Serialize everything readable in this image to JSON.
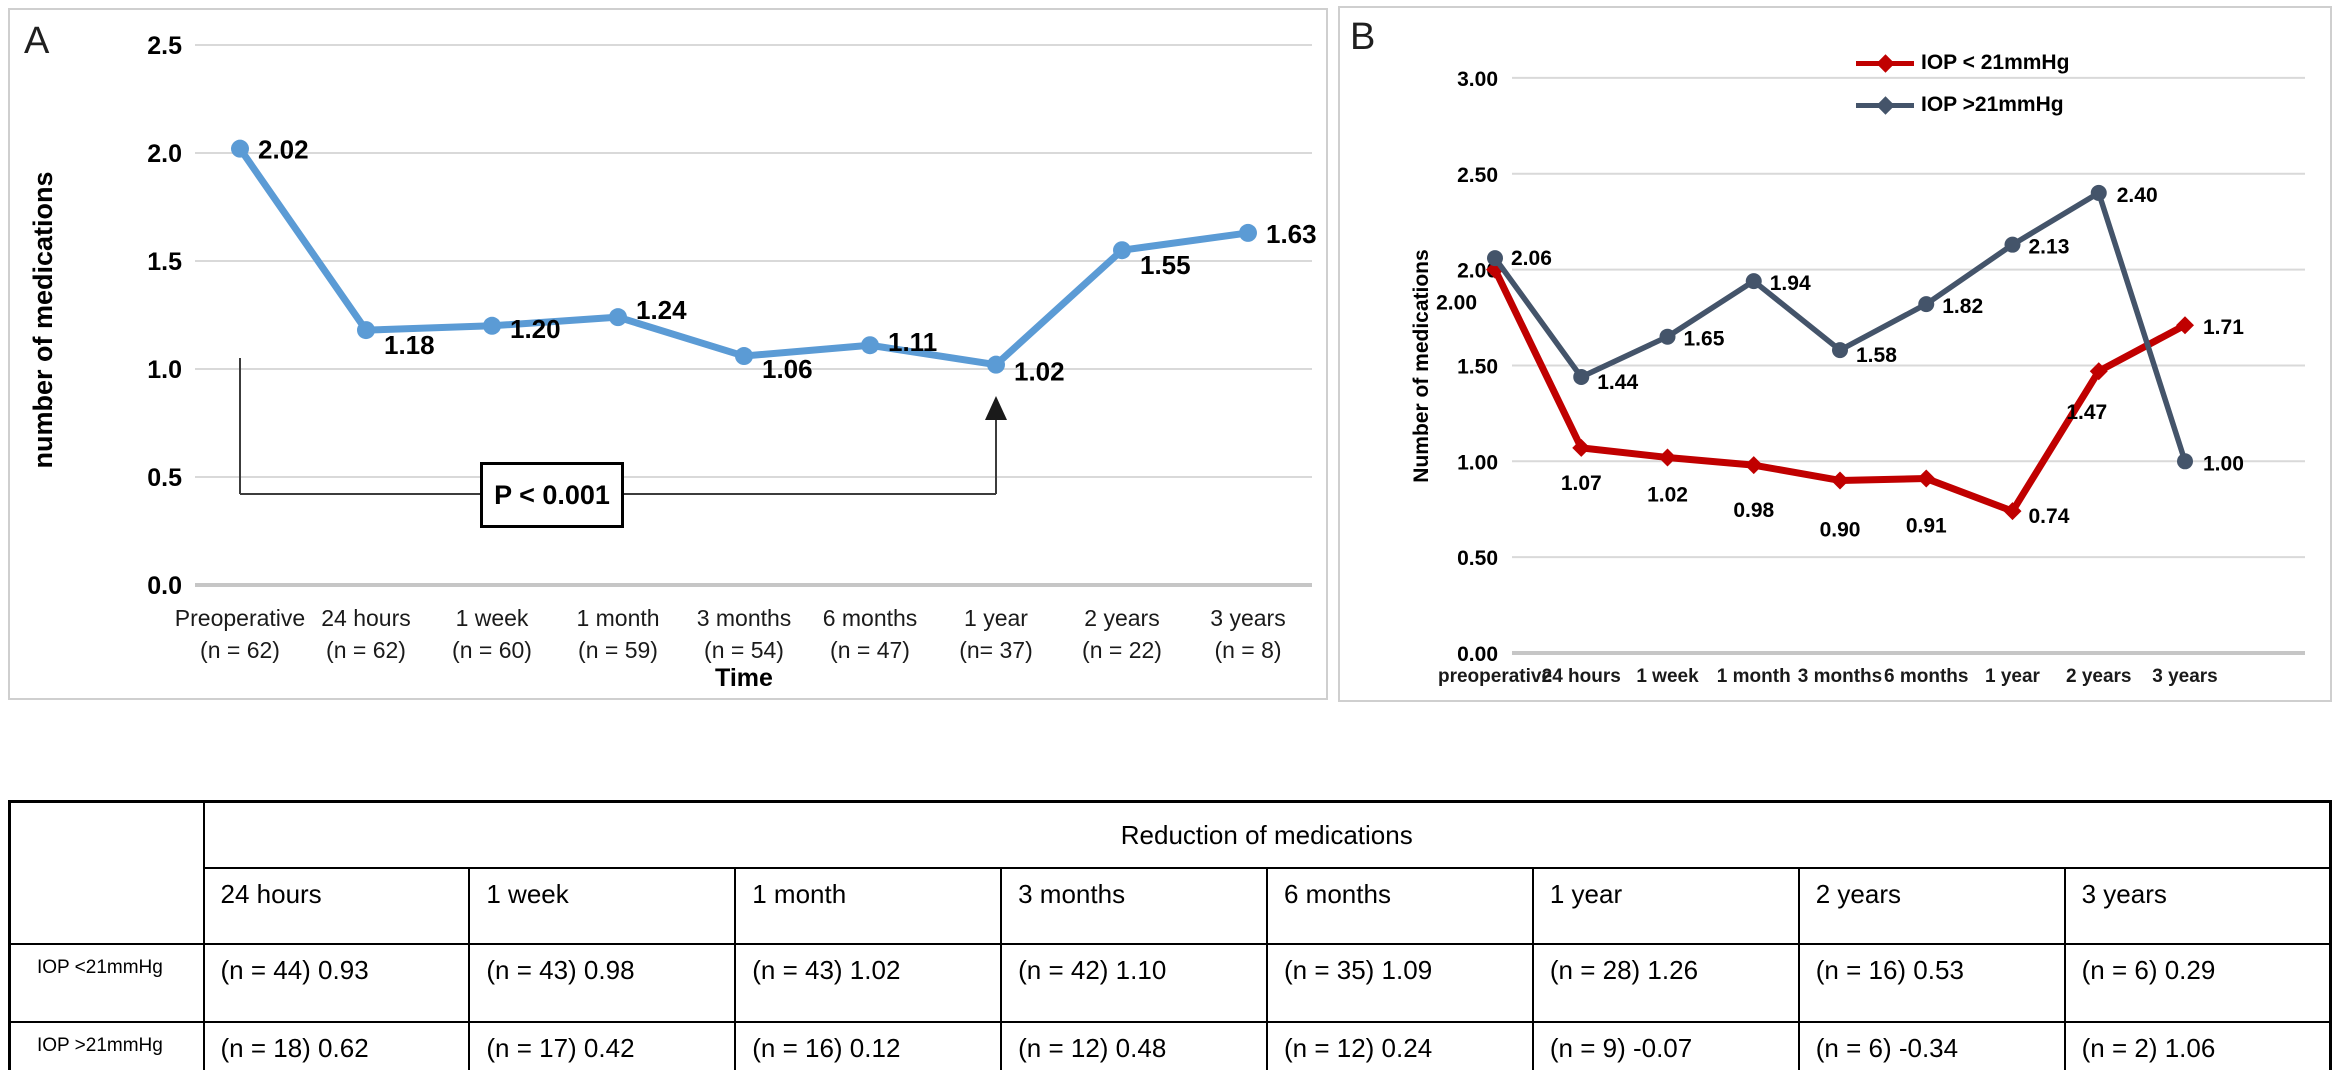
{
  "figure": {
    "panel_a_label": "A",
    "panel_b_label": "B"
  },
  "chart_data": [
    {
      "type": "line",
      "panel": "A",
      "ylabel": "number of medications",
      "xlabel": "Time",
      "ylim": [
        0,
        2.5
      ],
      "grid": true,
      "legend": false,
      "yticks": [
        {
          "v": 2.5,
          "label": "2.5"
        },
        {
          "v": 2.0,
          "label": "2.0"
        },
        {
          "v": 1.5,
          "label": "1.5"
        },
        {
          "v": 1.0,
          "label": "1.0"
        },
        {
          "v": 0.5,
          "label": "0.5"
        },
        {
          "v": 0.0,
          "label": "0.0"
        }
      ],
      "categories": [
        "Preoperative",
        "24 hours",
        "1 week",
        "1 month",
        "3 months",
        "6 months",
        "1 year",
        "2 years",
        "3 years"
      ],
      "category_counts": [
        "(n = 62)",
        "(n = 62)",
        "(n = 60)",
        "(n = 59)",
        "(n = 54)",
        "(n = 47)",
        "(n= 37)",
        "(n = 22)",
        "(n = 8)"
      ],
      "series": [
        {
          "name": "number of medications",
          "color": "#5B9BD5",
          "marker": "circle",
          "values": [
            2.02,
            1.18,
            1.2,
            1.24,
            1.06,
            1.11,
            1.02,
            1.55,
            1.63
          ],
          "labels": [
            "2.02",
            "1.18",
            "1.20",
            "1.24",
            "1.06",
            "1.11",
            "1.02",
            "1.55",
            "1.63"
          ]
        }
      ],
      "annotation": {
        "text": "P < 0.001",
        "from_category": "Preoperative",
        "to_category": "1 year",
        "arrow": "points up at the 1 year value 1.02"
      }
    },
    {
      "type": "line",
      "panel": "B",
      "ylabel": "Number of medications",
      "xlabel": "",
      "ylim": [
        0,
        3.0
      ],
      "grid": true,
      "legend": {
        "position": "top-center"
      },
      "yticks": [
        {
          "v": 3.0,
          "label": "3.00"
        },
        {
          "v": 2.5,
          "label": "2.50"
        },
        {
          "v": 2.0,
          "label": "2.00"
        },
        {
          "v": 1.5,
          "label": "1.50"
        },
        {
          "v": 1.0,
          "label": "1.00"
        },
        {
          "v": 0.5,
          "label": "0.50"
        },
        {
          "v": 0.0,
          "label": "0.00"
        }
      ],
      "categories": [
        "preoperative",
        "24 hours",
        "1 week",
        "1 month",
        "3 months",
        "6 months",
        "1 year",
        "2 years",
        "3 years"
      ],
      "series": [
        {
          "name": "IOP < 21mmHg",
          "color": "#C00000",
          "marker": "diamond",
          "values": [
            2.0,
            1.07,
            1.02,
            0.98,
            0.9,
            0.91,
            0.74,
            1.47,
            1.71
          ],
          "labels": [
            "2.00",
            "1.07",
            "1.02",
            "0.98",
            "0.90",
            "0.91",
            "0.74",
            "1.47",
            "1.71"
          ],
          "label_pos": [
            "left",
            "below",
            "below",
            "below",
            "below",
            "below",
            "right",
            "below",
            "right"
          ]
        },
        {
          "name": "IOP >21mmHg",
          "color": "#44546A",
          "marker": "circle",
          "values": [
            2.06,
            1.44,
            1.65,
            1.94,
            1.58,
            1.82,
            2.13,
            2.4,
            1.0
          ],
          "labels": [
            "2.06",
            "1.44",
            "1.65",
            "1.94",
            "1.58",
            "1.82",
            "2.13",
            "2.40",
            "1.00"
          ],
          "label_pos": [
            "right",
            "right",
            "right",
            "right",
            "right",
            "right",
            "right",
            "right",
            "right"
          ]
        }
      ]
    }
  ],
  "table": {
    "span_header": "Reduction of medications",
    "columns": [
      "24 hours",
      "1 week",
      "1 month",
      "3 months",
      "6 months",
      "1 year",
      "2 years",
      "3 years"
    ],
    "rows": [
      {
        "label": "IOP <21mmHg",
        "cells": [
          "(n = 44) 0.93",
          "(n = 43) 0.98",
          "(n = 43) 1.02",
          "(n = 42) 1.10",
          "(n = 35) 1.09",
          "(n = 28) 1.26",
          "(n = 16) 0.53",
          "(n = 6) 0.29"
        ]
      },
      {
        "label": "IOP >21mmHg",
        "cells": [
          "(n = 18) 0.62",
          "(n = 17) 0.42",
          "(n = 16) 0.12",
          "(n = 12) 0.48",
          "(n = 12) 0.24",
          "(n = 9) -0.07",
          "(n = 6)  -0.34",
          "(n = 2) 1.06"
        ]
      }
    ]
  },
  "colors": {
    "series_a_blue": "#5B9BD5",
    "series_b_red": "#C00000",
    "series_b_slate": "#44546A",
    "gridline": "#D9D9D9"
  }
}
